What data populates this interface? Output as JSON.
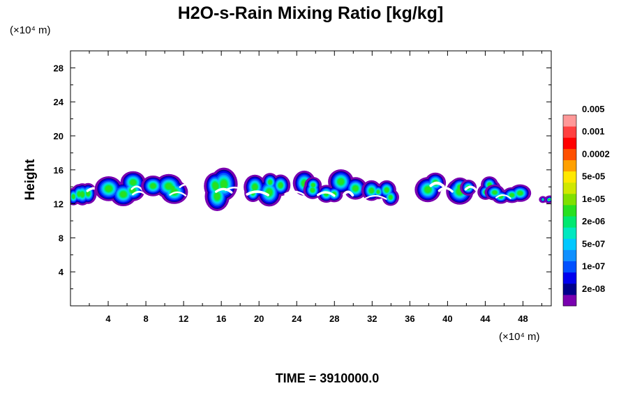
{
  "chart_data": {
    "type": "heatmap",
    "title": "H2O-s-Rain Mixing Ratio [kg/kg]",
    "ylabel": "Height",
    "x_unit_label": "(×10⁴ m)",
    "y_unit_label": "(×10⁴ m)",
    "footer": "TIME = 3910000.0",
    "xlim": [
      0,
      51
    ],
    "ylim": [
      0,
      30
    ],
    "x_ticks": [
      4,
      8,
      12,
      16,
      20,
      24,
      28,
      32,
      36,
      40,
      44,
      48
    ],
    "y_ticks": [
      4,
      8,
      12,
      16,
      20,
      24,
      28
    ],
    "colorbar": {
      "colors": [
        "#7a00b0",
        "#00008b",
        "#0000ee",
        "#0050ff",
        "#1090ff",
        "#00c8ff",
        "#00e8c0",
        "#00e870",
        "#28e020",
        "#80e000",
        "#d0e800",
        "#ffe800",
        "#ffa000",
        "#ff5000",
        "#ff0000",
        "#ff4040",
        "#ff9898"
      ],
      "labels": [
        "2e-08",
        "1e-07",
        "5e-07",
        "2e-06",
        "1e-05",
        "5e-05",
        "0.0002",
        "0.001",
        "0.005"
      ]
    },
    "clouds": [
      {
        "x0": 0.0,
        "x1": 3.5,
        "y0": 11.8,
        "y1": 15.2
      },
      {
        "x0": 3.0,
        "x1": 8.5,
        "y0": 12.0,
        "y1": 15.6
      },
      {
        "x0": 8.0,
        "x1": 13.5,
        "y0": 12.0,
        "y1": 15.5
      },
      {
        "x0": 13.0,
        "x1": 18.5,
        "y0": 11.2,
        "y1": 16.2
      },
      {
        "x0": 18.0,
        "x1": 25.5,
        "y0": 11.8,
        "y1": 16.0
      },
      {
        "x0": 25.0,
        "x1": 32.5,
        "y0": 12.0,
        "y1": 15.6
      },
      {
        "x0": 31.5,
        "x1": 35.2,
        "y0": 11.6,
        "y1": 14.5
      },
      {
        "x0": 36.0,
        "x1": 42.5,
        "y0": 12.2,
        "y1": 15.9
      },
      {
        "x0": 41.5,
        "x1": 45.0,
        "y0": 12.6,
        "y1": 15.2
      },
      {
        "x0": 44.5,
        "x1": 49.0,
        "y0": 11.8,
        "y1": 14.4
      },
      {
        "x0": 50.0,
        "x1": 51.0,
        "y0": 12.2,
        "y1": 13.0
      }
    ]
  }
}
